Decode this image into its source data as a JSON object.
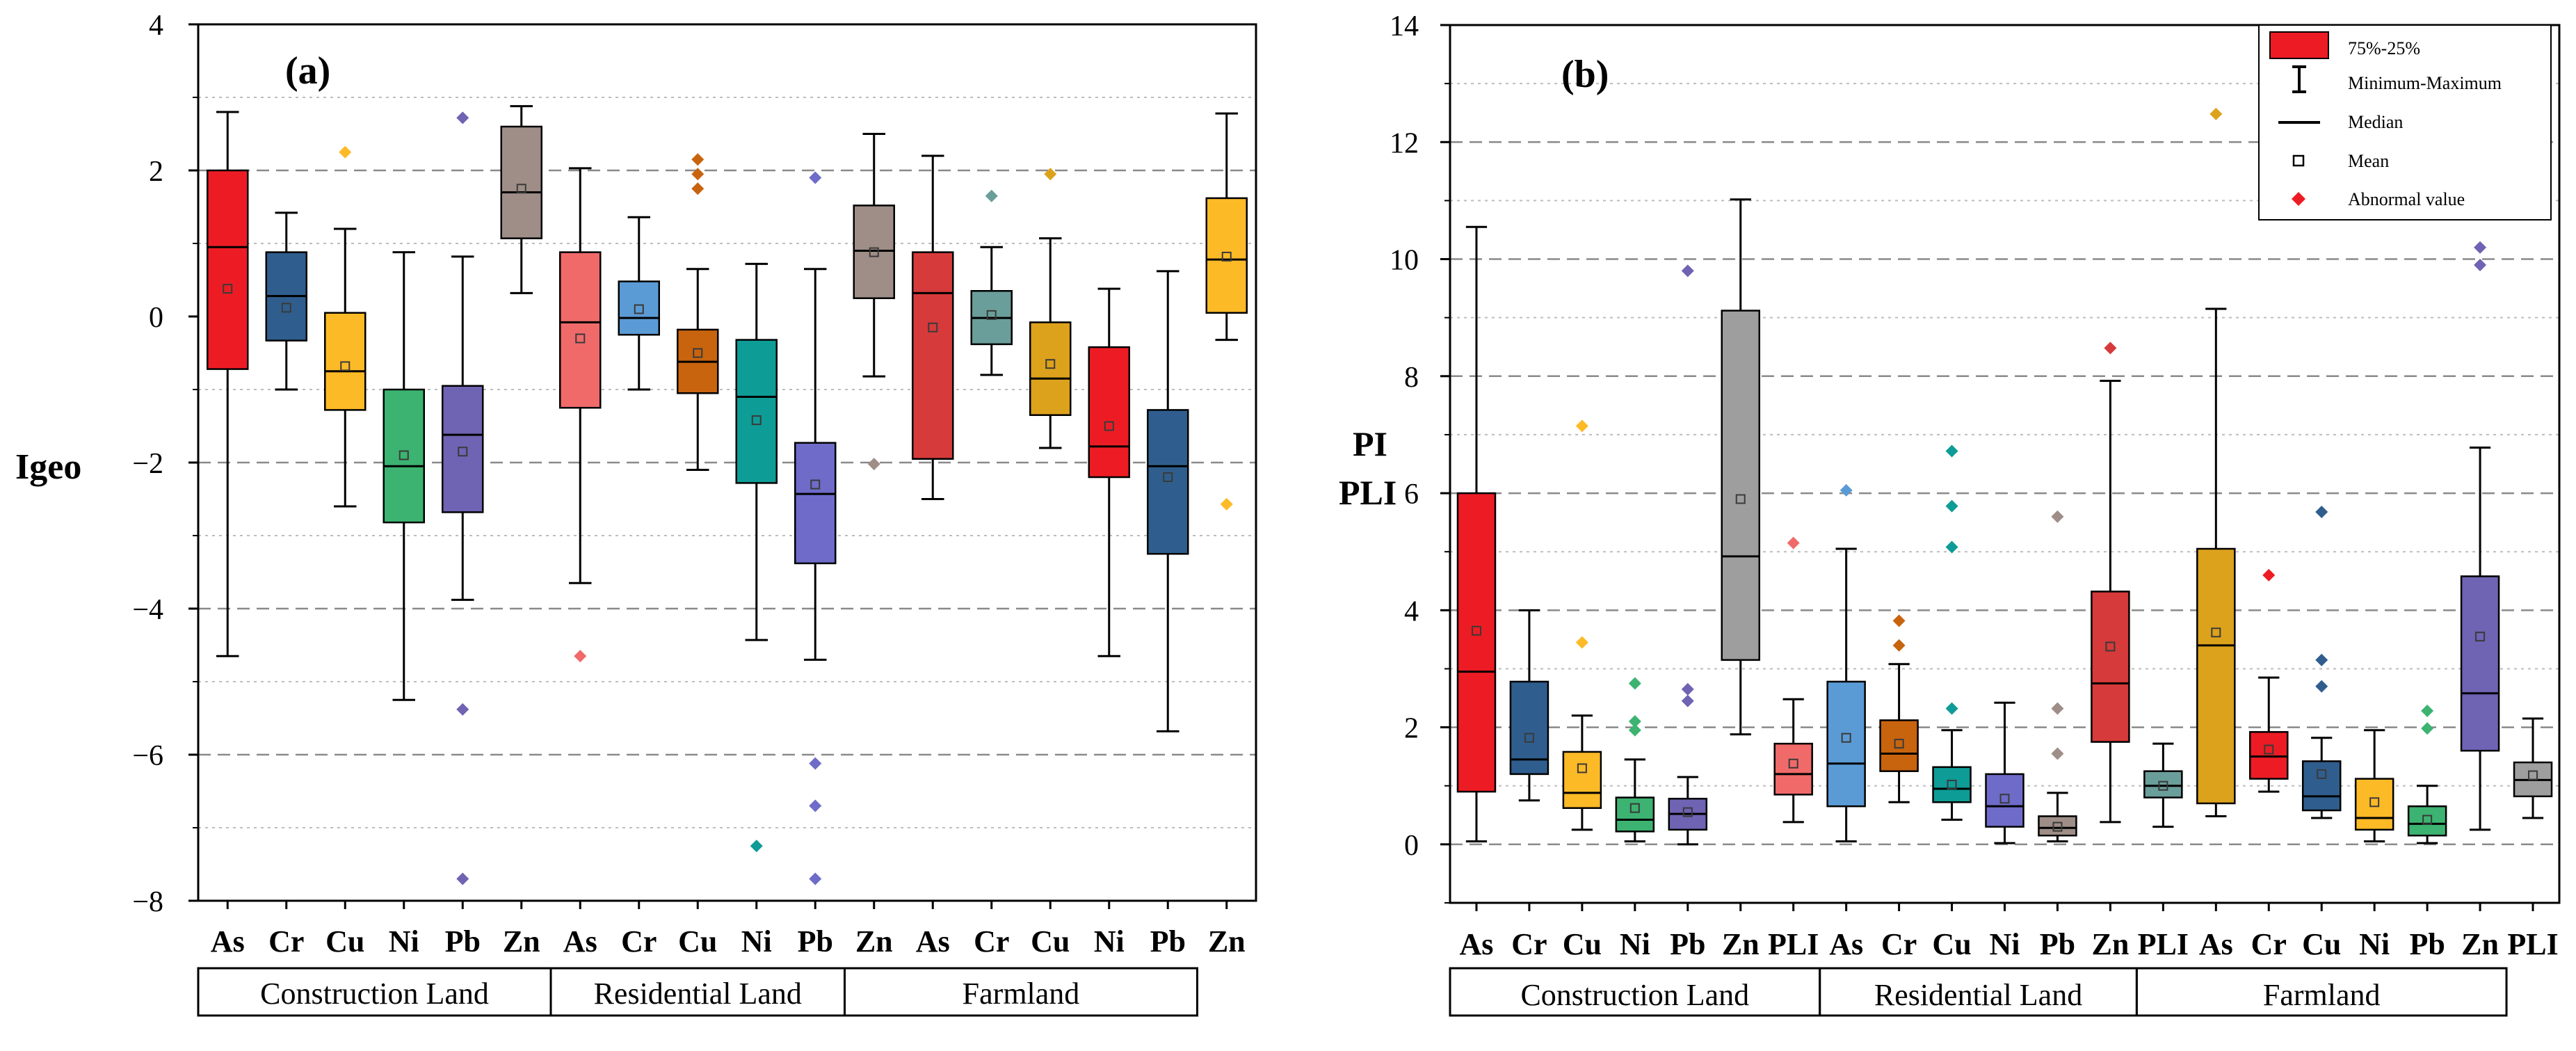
{
  "panels": {
    "a": {
      "label": "(a)",
      "ylabel": "Igeo"
    },
    "b": {
      "label": "(b)",
      "ylabel_top": "PI",
      "ylabel_bottom": "PLI"
    }
  },
  "legend": {
    "box_label": "75%-25%",
    "whisker_label": "Minimum-Maximum",
    "median_label": "Median",
    "mean_label": "Mean",
    "outlier_label": "Abnormal value",
    "box_color": "#ED1C24",
    "outlier_color": "#ED1C24"
  },
  "chart_data": [
    {
      "type": "box",
      "panel": "a",
      "title": "(a)",
      "ylabel": "Igeo",
      "ylim": [
        -8,
        4
      ],
      "yticks": [
        -8,
        -6,
        -4,
        -2,
        0,
        2,
        4
      ],
      "grid_major": [
        -6,
        -4,
        -2,
        2
      ],
      "grid_minor": [
        -7,
        -5,
        -3,
        -1,
        1,
        3
      ],
      "groups": [
        {
          "name": "Construction Land",
          "start": 0,
          "count": 6
        },
        {
          "name": "Residential Land",
          "start": 6,
          "count": 5
        },
        {
          "name": "Farmland",
          "start": 11,
          "count": 6
        }
      ],
      "boxes": [
        {
          "label": "As",
          "color": "#ED1C24",
          "min": -4.65,
          "q1": -0.72,
          "median": 0.95,
          "q3": 2.0,
          "max": 2.8,
          "mean": 0.38,
          "outliers": []
        },
        {
          "label": "Cr",
          "color": "#2F5E8E",
          "min": -1.0,
          "q1": -0.33,
          "median": 0.28,
          "q3": 0.88,
          "max": 1.42,
          "mean": 0.12,
          "outliers": []
        },
        {
          "label": "Cu",
          "color": "#FDBA27",
          "min": -2.6,
          "q1": -1.28,
          "median": -0.75,
          "q3": 0.05,
          "max": 1.2,
          "mean": -0.68,
          "outliers": [
            2.25
          ]
        },
        {
          "label": "Ni",
          "color": "#3CB371",
          "min": -5.25,
          "q1": -2.82,
          "median": -2.05,
          "q3": -1.0,
          "max": 0.88,
          "mean": -1.9,
          "outliers": []
        },
        {
          "label": "Pb",
          "color": "#6F63B3",
          "min": -3.88,
          "q1": -2.68,
          "median": -1.62,
          "q3": -0.95,
          "max": 0.82,
          "mean": -1.85,
          "outliers": [
            2.72,
            -5.38,
            -7.7
          ]
        },
        {
          "label": "Zn",
          "color": "#9E8E87",
          "min": 0.32,
          "q1": 1.07,
          "median": 1.7,
          "q3": 2.6,
          "max": 2.88,
          "mean": 1.75,
          "outliers": []
        },
        {
          "label": "As",
          "color": "#F06A6A",
          "min": -3.65,
          "q1": -1.25,
          "median": -0.08,
          "q3": 0.88,
          "max": 2.03,
          "mean": -0.3,
          "outliers": [
            -4.65
          ]
        },
        {
          "label": "Cr",
          "color": "#5B9BD5",
          "min": -1.0,
          "q1": -0.25,
          "median": -0.02,
          "q3": 0.48,
          "max": 1.36,
          "mean": 0.1,
          "outliers": []
        },
        {
          "label": "Cu",
          "color": "#C8640E",
          "min": -2.1,
          "q1": -1.05,
          "median": -0.62,
          "q3": -0.18,
          "max": 0.65,
          "mean": -0.5,
          "outliers": [
            2.15,
            1.95,
            1.75
          ]
        },
        {
          "label": "Ni",
          "color": "#0E9C96",
          "min": -4.43,
          "q1": -2.28,
          "median": -1.1,
          "q3": -0.32,
          "max": 0.72,
          "mean": -1.42,
          "outliers": [
            -7.25
          ]
        },
        {
          "label": "Pb",
          "color": "#6E6CC8",
          "min": -4.7,
          "q1": -3.38,
          "median": -2.43,
          "q3": -1.73,
          "max": 0.65,
          "mean": -2.3,
          "outliers": [
            1.9,
            -6.12,
            -6.7,
            -7.7
          ]
        },
        {
          "label": "Zn",
          "color": "#9E8E87",
          "min": -0.82,
          "q1": 0.25,
          "median": 0.9,
          "q3": 1.52,
          "max": 2.5,
          "mean": 0.88,
          "outliers": [
            -2.02
          ]
        },
        {
          "label": "As",
          "color": "#D63A3A",
          "min": -2.5,
          "q1": -1.95,
          "median": 0.32,
          "q3": 0.88,
          "max": 2.2,
          "mean": -0.15,
          "outliers": []
        },
        {
          "label": "Cr",
          "color": "#6A9E9A",
          "min": -0.8,
          "q1": -0.38,
          "median": -0.02,
          "q3": 0.35,
          "max": 0.95,
          "mean": 0.02,
          "outliers": [
            1.65
          ]
        },
        {
          "label": "Cu",
          "color": "#DDA21C",
          "min": -1.8,
          "q1": -1.35,
          "median": -0.85,
          "q3": -0.08,
          "max": 1.07,
          "mean": -0.65,
          "outliers": [
            1.95
          ]
        },
        {
          "label": "Ni",
          "color": "#ED1C24",
          "min": -4.65,
          "q1": -2.2,
          "median": -1.78,
          "q3": -0.42,
          "max": 0.38,
          "mean": -1.5,
          "outliers": []
        },
        {
          "label": "Pb",
          "color": "#2F5E8E",
          "min": -5.68,
          "q1": -3.25,
          "median": -2.05,
          "q3": -1.28,
          "max": 0.62,
          "mean": -2.2,
          "outliers": []
        },
        {
          "label": "Zn",
          "color": "#FDBA27",
          "min": -0.32,
          "q1": 0.05,
          "median": 0.78,
          "q3": 1.62,
          "max": 2.78,
          "mean": 0.82,
          "outliers": [
            -2.57
          ]
        }
      ]
    },
    {
      "type": "box",
      "panel": "b",
      "title": "(b)",
      "ylabel": "PI / PLI",
      "ylim": [
        -1,
        14
      ],
      "yticks": [
        0,
        2,
        4,
        6,
        8,
        10,
        12,
        14
      ],
      "grid_major": [
        2,
        4,
        6,
        8,
        10,
        12
      ],
      "grid_minor": [
        1,
        3,
        5,
        7,
        9,
        11,
        13
      ],
      "groups": [
        {
          "name": "Construction Land",
          "start": 0,
          "count": 7
        },
        {
          "name": "Residential Land",
          "start": 7,
          "count": 6
        },
        {
          "name": "Farmland",
          "start": 13,
          "count": 7
        }
      ],
      "boxes": [
        {
          "label": "As",
          "color": "#ED1C24",
          "min": 0.05,
          "q1": 0.9,
          "median": 2.95,
          "q3": 6.0,
          "max": 10.55,
          "mean": 3.65,
          "outliers": []
        },
        {
          "label": "Cr",
          "color": "#2F5E8E",
          "min": 0.75,
          "q1": 1.2,
          "median": 1.45,
          "q3": 2.78,
          "max": 4.0,
          "mean": 1.82,
          "outliers": []
        },
        {
          "label": "Cu",
          "color": "#FDBA27",
          "min": 0.25,
          "q1": 0.62,
          "median": 0.88,
          "q3": 1.58,
          "max": 2.2,
          "mean": 1.3,
          "outliers": [
            7.15,
            3.45
          ]
        },
        {
          "label": "Ni",
          "color": "#3CB371",
          "min": 0.05,
          "q1": 0.22,
          "median": 0.42,
          "q3": 0.8,
          "max": 1.45,
          "mean": 0.62,
          "outliers": [
            2.75,
            2.1,
            1.95
          ]
        },
        {
          "label": "Pb",
          "color": "#6F63B3",
          "min": 0.0,
          "q1": 0.25,
          "median": 0.52,
          "q3": 0.78,
          "max": 1.15,
          "mean": 0.55,
          "outliers": [
            9.8,
            2.65,
            2.45
          ]
        },
        {
          "label": "Zn",
          "color": "#9E9E9E",
          "min": 1.88,
          "q1": 3.15,
          "median": 4.92,
          "q3": 9.12,
          "max": 11.02,
          "mean": 5.9,
          "outliers": []
        },
        {
          "label": "PLI",
          "color": "#F06A6A",
          "min": 0.38,
          "q1": 0.85,
          "median": 1.2,
          "q3": 1.72,
          "max": 2.48,
          "mean": 1.38,
          "outliers": [
            5.15
          ]
        },
        {
          "label": "As",
          "color": "#5B9BD5",
          "min": 0.05,
          "q1": 0.65,
          "median": 1.38,
          "q3": 2.78,
          "max": 5.05,
          "mean": 1.82,
          "outliers": [
            6.05
          ]
        },
        {
          "label": "Cr",
          "color": "#C8640E",
          "min": 0.72,
          "q1": 1.25,
          "median": 1.55,
          "q3": 2.12,
          "max": 3.08,
          "mean": 1.72,
          "outliers": [
            3.82,
            3.4
          ]
        },
        {
          "label": "Cu",
          "color": "#0E9C96",
          "min": 0.42,
          "q1": 0.72,
          "median": 0.95,
          "q3": 1.32,
          "max": 1.95,
          "mean": 1.02,
          "outliers": [
            6.72,
            5.78,
            5.08,
            2.32
          ]
        },
        {
          "label": "Ni",
          "color": "#6E6CC8",
          "min": 0.02,
          "q1": 0.3,
          "median": 0.65,
          "q3": 1.2,
          "max": 2.42,
          "mean": 0.78,
          "outliers": []
        },
        {
          "label": "Pb",
          "color": "#9E8E87",
          "min": 0.05,
          "q1": 0.15,
          "median": 0.28,
          "q3": 0.48,
          "max": 0.88,
          "mean": 0.3,
          "outliers": [
            5.6,
            2.32,
            1.55
          ]
        },
        {
          "label": "Zn",
          "color": "#D63A3A",
          "min": 0.38,
          "q1": 1.75,
          "median": 2.75,
          "q3": 4.32,
          "max": 7.92,
          "mean": 3.38,
          "outliers": [
            8.48
          ]
        },
        {
          "label": "PLI",
          "color": "#6A9E9A",
          "min": 0.3,
          "q1": 0.8,
          "median": 1.0,
          "q3": 1.25,
          "max": 1.72,
          "mean": 1.0,
          "outliers": []
        },
        {
          "label": "As",
          "color": "#DDA21C",
          "min": 0.48,
          "q1": 0.7,
          "median": 3.4,
          "q3": 5.05,
          "max": 9.15,
          "mean": 3.62,
          "outliers": [
            12.48
          ]
        },
        {
          "label": "Cr",
          "color": "#ED1C24",
          "min": 0.9,
          "q1": 1.12,
          "median": 1.5,
          "q3": 1.92,
          "max": 2.85,
          "mean": 1.62,
          "outliers": [
            4.6
          ]
        },
        {
          "label": "Cu",
          "color": "#2F5E8E",
          "min": 0.45,
          "q1": 0.58,
          "median": 0.82,
          "q3": 1.42,
          "max": 1.82,
          "mean": 1.2,
          "outliers": [
            5.68,
            3.15,
            2.7
          ]
        },
        {
          "label": "Ni",
          "color": "#FDBA27",
          "min": 0.05,
          "q1": 0.25,
          "median": 0.45,
          "q3": 1.12,
          "max": 1.95,
          "mean": 0.72,
          "outliers": []
        },
        {
          "label": "Pb",
          "color": "#3CB371",
          "min": 0.02,
          "q1": 0.15,
          "median": 0.35,
          "q3": 0.65,
          "max": 1.0,
          "mean": 0.42,
          "outliers": [
            2.28,
            1.98
          ]
        },
        {
          "label": "Zn",
          "color": "#6F63B3",
          "min": 0.25,
          "q1": 1.6,
          "median": 2.58,
          "q3": 4.58,
          "max": 6.78,
          "mean": 3.55,
          "outliers": [
            10.2,
            9.9
          ]
        },
        {
          "label": "PLI",
          "color": "#9E9E9E",
          "min": 0.45,
          "q1": 0.82,
          "median": 1.1,
          "q3": 1.4,
          "max": 2.15,
          "mean": 1.18,
          "outliers": []
        }
      ]
    }
  ]
}
